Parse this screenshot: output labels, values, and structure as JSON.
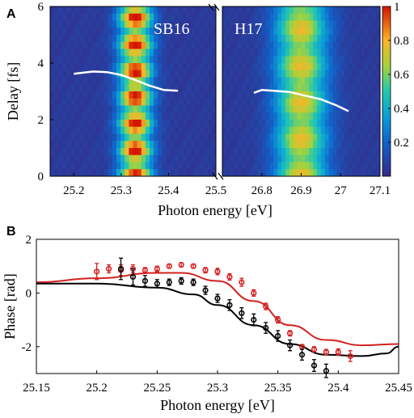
{
  "chart_data": [
    {
      "panel": "A",
      "type": "heatmap",
      "xlabel": "Photon energy [eV]",
      "ylabel": "Delay [fs]",
      "ylim": [
        0,
        6
      ],
      "y_ticks": [
        "0",
        "2",
        "4",
        "6"
      ],
      "colorbar": {
        "range": [
          0,
          1
        ],
        "ticks": [
          "0.2",
          "0.4",
          "0.6",
          "0.8",
          "1"
        ]
      },
      "maps": [
        {
          "label": "SB16",
          "xlim": [
            25.15,
            25.5
          ],
          "x_ticks": [
            "25.2",
            "25.3",
            "25.4",
            "25.5"
          ],
          "peak_center": 25.33,
          "peak_width": 0.024,
          "phase_curve": {
            "x": [
              25.2,
              25.24,
              25.27,
              25.3,
              25.33,
              25.36,
              25.39,
              25.42
            ],
            "y": [
              3.62,
              3.7,
              3.68,
              3.58,
              3.4,
              3.2,
              3.05,
              3.02
            ]
          }
        },
        {
          "label": "H17",
          "xlim": [
            26.7,
            27.1
          ],
          "x_ticks": [
            "26.8",
            "26.9",
            "27",
            "27.1"
          ],
          "peak_center": 26.9,
          "peak_width": 0.045,
          "phase_curve": {
            "x": [
              26.78,
              26.8,
              26.83,
              26.87,
              26.91,
              26.95,
              26.99,
              27.02
            ],
            "y": [
              2.95,
              3.05,
              3.02,
              2.98,
              2.85,
              2.72,
              2.5,
              2.3
            ]
          }
        }
      ]
    },
    {
      "panel": "B",
      "type": "scatter",
      "xlabel": "Photon energy [eV]",
      "ylabel": "Phase [rad]",
      "xlim": [
        25.15,
        25.45
      ],
      "ylim": [
        -3,
        2
      ],
      "x_ticks": [
        "25.15",
        "25.2",
        "25.25",
        "25.3",
        "25.35",
        "25.4",
        "25.45"
      ],
      "y_ticks": [
        "-2",
        "0",
        "2"
      ],
      "series": [
        {
          "color": "#d42020",
          "points": [
            {
              "x": 25.2,
              "y": 0.8,
              "err": 0.3
            },
            {
              "x": 25.21,
              "y": 0.9,
              "err": 0.15
            },
            {
              "x": 25.22,
              "y": 0.85,
              "err": 0.2
            },
            {
              "x": 25.23,
              "y": 0.9,
              "err": 0.15
            },
            {
              "x": 25.24,
              "y": 0.85,
              "err": 0.1
            },
            {
              "x": 25.25,
              "y": 0.9,
              "err": 0.1
            },
            {
              "x": 25.26,
              "y": 1.0,
              "err": 0.08
            },
            {
              "x": 25.27,
              "y": 1.05,
              "err": 0.08
            },
            {
              "x": 25.28,
              "y": 1.0,
              "err": 0.08
            },
            {
              "x": 25.29,
              "y": 0.85,
              "err": 0.1
            },
            {
              "x": 25.3,
              "y": 0.8,
              "err": 0.12
            },
            {
              "x": 25.31,
              "y": 0.6,
              "err": 0.12
            },
            {
              "x": 25.32,
              "y": 0.4,
              "err": 0.15
            },
            {
              "x": 25.33,
              "y": 0.0,
              "err": 0.12
            },
            {
              "x": 25.34,
              "y": -0.5,
              "err": 0.12
            },
            {
              "x": 25.35,
              "y": -1.0,
              "err": 0.12
            },
            {
              "x": 25.36,
              "y": -1.5,
              "err": 0.1
            },
            {
              "x": 25.37,
              "y": -2.0,
              "err": 0.08
            },
            {
              "x": 25.38,
              "y": -2.1,
              "err": 0.1
            },
            {
              "x": 25.39,
              "y": -2.2,
              "err": 0.1
            },
            {
              "x": 25.4,
              "y": -2.2,
              "err": 0.12
            },
            {
              "x": 25.41,
              "y": -2.35,
              "err": 0.2
            }
          ]
        },
        {
          "color": "#000000",
          "points": [
            {
              "x": 25.22,
              "y": 0.9,
              "err": 0.4
            },
            {
              "x": 25.23,
              "y": 0.6,
              "err": 0.3
            },
            {
              "x": 25.24,
              "y": 0.45,
              "err": 0.2
            },
            {
              "x": 25.25,
              "y": 0.35,
              "err": 0.15
            },
            {
              "x": 25.26,
              "y": 0.4,
              "err": 0.12
            },
            {
              "x": 25.27,
              "y": 0.45,
              "err": 0.12
            },
            {
              "x": 25.28,
              "y": 0.4,
              "err": 0.12
            },
            {
              "x": 25.29,
              "y": 0.1,
              "err": 0.15
            },
            {
              "x": 25.3,
              "y": -0.2,
              "err": 0.15
            },
            {
              "x": 25.31,
              "y": -0.45,
              "err": 0.2
            },
            {
              "x": 25.32,
              "y": -0.75,
              "err": 0.2
            },
            {
              "x": 25.33,
              "y": -1.0,
              "err": 0.22
            },
            {
              "x": 25.34,
              "y": -1.3,
              "err": 0.2
            },
            {
              "x": 25.35,
              "y": -1.6,
              "err": 0.2
            },
            {
              "x": 25.36,
              "y": -1.95,
              "err": 0.2
            },
            {
              "x": 25.37,
              "y": -2.3,
              "err": 0.2
            },
            {
              "x": 25.38,
              "y": -2.7,
              "err": 0.22
            },
            {
              "x": 25.39,
              "y": -2.9,
              "err": 0.25
            }
          ]
        }
      ],
      "fit_curves": [
        {
          "color": "#d42020",
          "x": [
            25.15,
            25.2,
            25.25,
            25.27,
            25.3,
            25.33,
            25.36,
            25.39,
            25.42,
            25.45
          ],
          "y": [
            0.4,
            0.55,
            0.75,
            0.75,
            0.45,
            -0.3,
            -1.2,
            -1.75,
            -1.95,
            -1.9
          ]
        },
        {
          "color": "#000000",
          "x": [
            25.15,
            25.2,
            25.25,
            25.28,
            25.3,
            25.33,
            25.36,
            25.39,
            25.42,
            25.44,
            25.45
          ],
          "y": [
            0.35,
            0.35,
            0.2,
            -0.05,
            -0.45,
            -1.2,
            -1.9,
            -2.3,
            -2.35,
            -2.25,
            -2.0
          ]
        }
      ]
    }
  ]
}
